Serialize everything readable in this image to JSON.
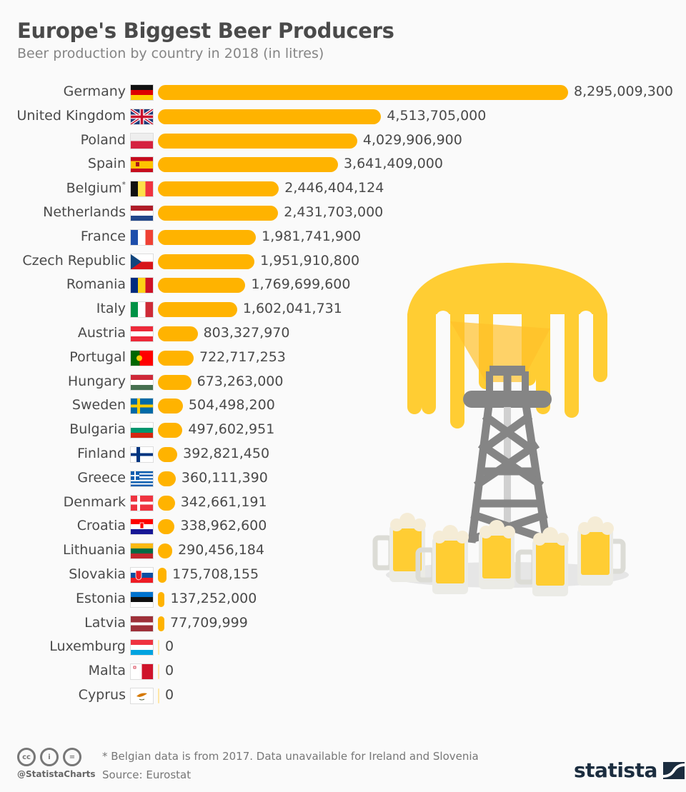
{
  "header": {
    "title": "Europe's Biggest Beer Producers",
    "subtitle": "Beer production by country in 2018 (in litres)"
  },
  "colors": {
    "bar": "#ffb300",
    "foam": "#ffcd33",
    "tower": "#858585"
  },
  "rows": [
    {
      "country": "Germany",
      "value": "8,295,009,300",
      "flag": "de"
    },
    {
      "country": "United Kingdom",
      "value": "4,513,705,000",
      "flag": "gb"
    },
    {
      "country": "Poland",
      "value": "4,029,906,900",
      "flag": "pl"
    },
    {
      "country": "Spain",
      "value": "3,641,409,000",
      "flag": "es"
    },
    {
      "country": "Belgium",
      "value": "2,446,404,124",
      "flag": "be",
      "footnote": "*"
    },
    {
      "country": "Netherlands",
      "value": "2,431,703,000",
      "flag": "nl"
    },
    {
      "country": "France",
      "value": "1,981,741,900",
      "flag": "fr"
    },
    {
      "country": "Czech Republic",
      "value": "1,951,910,800",
      "flag": "cz"
    },
    {
      "country": "Romania",
      "value": "1,769,699,600",
      "flag": "ro"
    },
    {
      "country": "Italy",
      "value": "1,602,041,731",
      "flag": "it"
    },
    {
      "country": "Austria",
      "value": "803,327,970",
      "flag": "at"
    },
    {
      "country": "Portugal",
      "value": "722,717,253",
      "flag": "pt"
    },
    {
      "country": "Hungary",
      "value": "673,263,000",
      "flag": "hu"
    },
    {
      "country": "Sweden",
      "value": "504,498,200",
      "flag": "se"
    },
    {
      "country": "Bulgaria",
      "value": "497,602,951",
      "flag": "bg"
    },
    {
      "country": "Finland",
      "value": "392,821,450",
      "flag": "fi"
    },
    {
      "country": "Greece",
      "value": "360,111,390",
      "flag": "gr"
    },
    {
      "country": "Denmark",
      "value": "342,661,191",
      "flag": "dk"
    },
    {
      "country": "Croatia",
      "value": "338,962,600",
      "flag": "hr"
    },
    {
      "country": "Lithuania",
      "value": "290,456,184",
      "flag": "lt"
    },
    {
      "country": "Slovakia",
      "value": "175,708,155",
      "flag": "sk"
    },
    {
      "country": "Estonia",
      "value": "137,252,000",
      "flag": "ee"
    },
    {
      "country": "Latvia",
      "value": "77,709,999",
      "flag": "lv"
    },
    {
      "country": "Luxemburg",
      "value": "0",
      "flag": "lu"
    },
    {
      "country": "Malta",
      "value": "0",
      "flag": "mt"
    },
    {
      "country": "Cyprus",
      "value": "0",
      "flag": "cy"
    }
  ],
  "footer": {
    "note": "* Belgian data is from 2017. Data unavailable for Ireland and Slovenia",
    "source": "Source: Eurostat",
    "handle": "@StatistaCharts",
    "cc_icons": [
      "cc-icon",
      "by-icon",
      "nd-icon"
    ],
    "cc_labels": [
      "cc",
      "i",
      "="
    ],
    "logo": "statista"
  },
  "chart_data": {
    "type": "bar",
    "orientation": "horizontal",
    "title": "Europe's Biggest Beer Producers",
    "subtitle": "Beer production by country in 2018 (in litres)",
    "xlabel": "",
    "ylabel": "",
    "grid": false,
    "legend": null,
    "categories": [
      "Germany",
      "United Kingdom",
      "Poland",
      "Spain",
      "Belgium*",
      "Netherlands",
      "France",
      "Czech Republic",
      "Romania",
      "Italy",
      "Austria",
      "Portugal",
      "Hungary",
      "Sweden",
      "Bulgaria",
      "Finland",
      "Greece",
      "Denmark",
      "Croatia",
      "Lithuania",
      "Slovakia",
      "Estonia",
      "Latvia",
      "Luxemburg",
      "Malta",
      "Cyprus"
    ],
    "values": [
      8295009300,
      4513705000,
      4029906900,
      3641409000,
      2446404124,
      2431703000,
      1981741900,
      1951910800,
      1769699600,
      1602041731,
      803327970,
      722717253,
      673263000,
      504498200,
      497602951,
      392821450,
      360111390,
      342661191,
      338962600,
      290456184,
      175708155,
      137252000,
      77709999,
      0,
      0,
      0
    ],
    "annotations": [
      "* Belgian data is from 2017. Data unavailable for Ireland and Slovenia",
      "Source: Eurostat"
    ]
  }
}
